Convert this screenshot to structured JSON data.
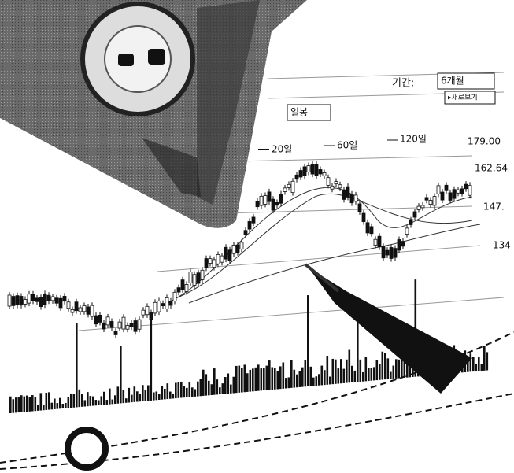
{
  "toolbar": {
    "period_label": "기간:",
    "period_value": "6개월",
    "refresh_button": "▸새로보기",
    "interval_value": "일봉"
  },
  "legend": [
    "20일",
    "60일",
    "120일"
  ],
  "price_labels": [
    "179.00",
    "162.64",
    "147.",
    "134"
  ]
}
